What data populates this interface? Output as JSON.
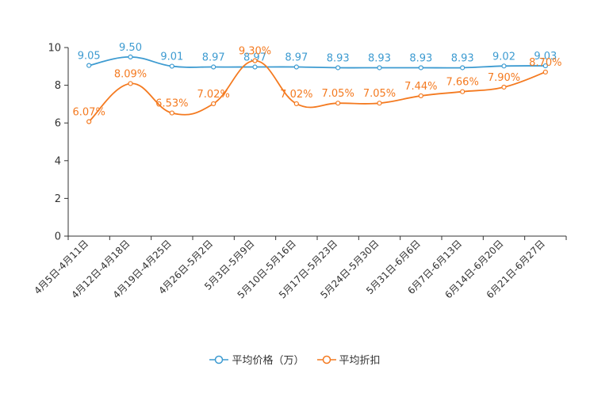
{
  "chart_data": {
    "type": "line",
    "categories": [
      "4月5日-4月11日",
      "4月12日-4月18日",
      "4月19日-4月25日",
      "4月26日-5月2日",
      "5月3日-5月9日",
      "5月10日-5月16日",
      "5月17日-5月23日",
      "5月24日-5月30日",
      "5月31日-6月6日",
      "6月7日-6月13日",
      "6月14日-6月20日",
      "6月21日-6月27日"
    ],
    "series": [
      {
        "name": "平均价格（万）",
        "color": "#3d9bd1",
        "values": [
          9.05,
          9.5,
          9.01,
          8.97,
          8.97,
          8.97,
          8.93,
          8.93,
          8.93,
          8.93,
          9.02,
          9.03
        ],
        "labels": [
          "9.05",
          "9.50",
          "9.01",
          "8.97",
          "8.97",
          "8.97",
          "8.93",
          "8.93",
          "8.93",
          "8.93",
          "9.02",
          "9.03"
        ]
      },
      {
        "name": "平均折扣",
        "color": "#f47a20",
        "values": [
          6.07,
          8.09,
          6.53,
          7.02,
          9.3,
          7.02,
          7.05,
          7.05,
          7.44,
          7.66,
          7.9,
          8.7
        ],
        "labels": [
          "6.07%",
          "8.09%",
          "6.53%",
          "7.02%",
          "9.30%",
          "7.02%",
          "7.05%",
          "7.05%",
          "7.44%",
          "7.66%",
          "7.90%",
          "8.70%"
        ]
      }
    ],
    "yticks": [
      "0",
      "2",
      "4",
      "6",
      "8",
      "10"
    ],
    "ylim": [
      0,
      10
    ],
    "legend_position": "bottom-center"
  }
}
